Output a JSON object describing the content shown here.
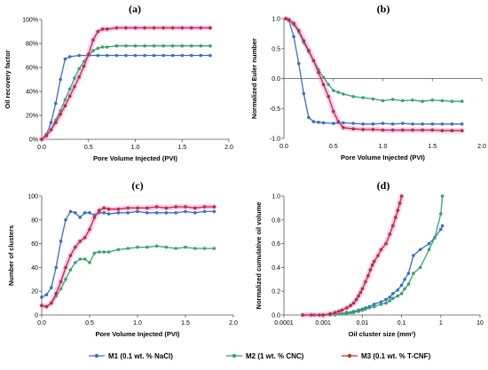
{
  "colors": {
    "M1": "#3a6ccc",
    "M2": "#33a56c",
    "M3": "#b8322a",
    "M3_glow": "#f060ff"
  },
  "legend": [
    {
      "key": "M1",
      "label": "M1 (0.1  wt. % NaCl)"
    },
    {
      "key": "M2",
      "label": "M2 (1  wt. % CNC)"
    },
    {
      "key": "M3",
      "label": "M3 (0.1 wt. % T-CNF)"
    }
  ],
  "chart_data": [
    {
      "type": "line",
      "title": "(a)",
      "xlabel": "Pore Volume Injected (PVI)",
      "ylabel": "Oil recovery factor",
      "xlim": [
        0,
        2
      ],
      "ylim": [
        0,
        100
      ],
      "xticks": [
        0,
        0.5,
        1,
        1.5,
        2
      ],
      "xtick_labels": [
        "0.0",
        "0.5",
        "1.0",
        "1.5",
        "2.0"
      ],
      "yticks": [
        0,
        20,
        40,
        60,
        80,
        100
      ],
      "ytick_labels": [
        "0%",
        "20%",
        "40%",
        "60%",
        "80%",
        "100%"
      ],
      "grid": false,
      "series": [
        {
          "key": "M1",
          "x": [
            0,
            0.05,
            0.1,
            0.15,
            0.2,
            0.25,
            0.3,
            0.4,
            0.5,
            0.6,
            0.7,
            0.8,
            0.9,
            1.0,
            1.1,
            1.2,
            1.3,
            1.4,
            1.5,
            1.6,
            1.7,
            1.8
          ],
          "y": [
            0,
            4,
            14,
            30,
            50,
            67,
            69,
            70,
            70,
            70,
            70,
            70,
            70,
            70,
            70,
            70,
            70,
            70,
            70,
            70,
            70,
            70
          ]
        },
        {
          "key": "M2",
          "x": [
            0,
            0.05,
            0.1,
            0.15,
            0.2,
            0.25,
            0.3,
            0.35,
            0.4,
            0.45,
            0.5,
            0.55,
            0.6,
            0.65,
            0.7,
            0.8,
            0.9,
            1.0,
            1.1,
            1.2,
            1.3,
            1.4,
            1.5,
            1.6,
            1.7,
            1.8
          ],
          "y": [
            0,
            3,
            8,
            16,
            24,
            33,
            42,
            51,
            59,
            65,
            70,
            74,
            76,
            77,
            77,
            78,
            78,
            78,
            78,
            78,
            78,
            78,
            78,
            78,
            78,
            78
          ]
        },
        {
          "key": "M3",
          "x": [
            0,
            0.05,
            0.1,
            0.15,
            0.2,
            0.25,
            0.3,
            0.35,
            0.4,
            0.45,
            0.5,
            0.55,
            0.6,
            0.65,
            0.7,
            0.8,
            0.9,
            1.0,
            1.1,
            1.2,
            1.3,
            1.4,
            1.5,
            1.6,
            1.7,
            1.8
          ],
          "y": [
            0,
            3,
            8,
            14,
            21,
            28,
            36,
            44,
            52,
            61,
            71,
            83,
            90,
            92,
            92,
            93,
            93,
            93,
            93,
            93,
            93,
            93,
            93,
            93,
            93,
            93
          ]
        }
      ]
    },
    {
      "type": "line",
      "title": "(b)",
      "xlabel": "Pore Volume Injected (PVI)",
      "ylabel": "Normalized Euler number",
      "xlim": [
        0,
        2
      ],
      "ylim": [
        -1,
        1
      ],
      "xticks": [
        0,
        0.5,
        1,
        1.5,
        2
      ],
      "xtick_labels": [
        "0.0",
        "0.5",
        "1.0",
        "1.5",
        "2.0"
      ],
      "yticks": [
        -1,
        -0.5,
        0,
        0.5,
        1
      ],
      "ytick_labels": [
        "-1.0",
        "-0.5",
        "0.0",
        "0.5",
        "1.0"
      ],
      "grid": false,
      "series": [
        {
          "key": "M1",
          "x": [
            0.02,
            0.05,
            0.1,
            0.15,
            0.2,
            0.25,
            0.3,
            0.35,
            0.4,
            0.5,
            0.6,
            0.7,
            0.8,
            0.9,
            1.0,
            1.1,
            1.2,
            1.3,
            1.4,
            1.5,
            1.6,
            1.7,
            1.8
          ],
          "y": [
            1.0,
            0.97,
            0.7,
            0.25,
            -0.25,
            -0.65,
            -0.72,
            -0.73,
            -0.74,
            -0.75,
            -0.74,
            -0.75,
            -0.76,
            -0.76,
            -0.75,
            -0.76,
            -0.75,
            -0.76,
            -0.76,
            -0.76,
            -0.76,
            -0.76,
            -0.76
          ]
        },
        {
          "key": "M2",
          "x": [
            0.02,
            0.05,
            0.1,
            0.15,
            0.2,
            0.25,
            0.3,
            0.35,
            0.4,
            0.45,
            0.5,
            0.55,
            0.6,
            0.7,
            0.8,
            0.9,
            1.0,
            1.1,
            1.2,
            1.3,
            1.4,
            1.5,
            1.6,
            1.7,
            1.8
          ],
          "y": [
            1.0,
            0.98,
            0.9,
            0.78,
            0.6,
            0.45,
            0.3,
            0.15,
            0.02,
            -0.1,
            -0.2,
            -0.23,
            -0.26,
            -0.3,
            -0.32,
            -0.34,
            -0.37,
            -0.35,
            -0.37,
            -0.36,
            -0.38,
            -0.36,
            -0.37,
            -0.38,
            -0.38
          ]
        },
        {
          "key": "M3",
          "x": [
            0.02,
            0.05,
            0.1,
            0.15,
            0.2,
            0.25,
            0.3,
            0.35,
            0.4,
            0.45,
            0.5,
            0.55,
            0.6,
            0.7,
            0.8,
            0.9,
            1.0,
            1.1,
            1.2,
            1.3,
            1.4,
            1.5,
            1.6,
            1.7,
            1.8
          ],
          "y": [
            1.0,
            0.98,
            0.92,
            0.8,
            0.63,
            0.47,
            0.3,
            0.1,
            -0.1,
            -0.3,
            -0.55,
            -0.72,
            -0.82,
            -0.84,
            -0.85,
            -0.85,
            -0.86,
            -0.86,
            -0.86,
            -0.86,
            -0.86,
            -0.86,
            -0.87,
            -0.87,
            -0.87
          ]
        }
      ]
    },
    {
      "type": "line",
      "title": "(c)",
      "xlabel": "Pore Volume Injected (PVI)",
      "ylabel": "Number of clusters",
      "xlim": [
        0,
        2
      ],
      "ylim": [
        0,
        100
      ],
      "xticks": [
        0,
        0.5,
        1,
        1.5,
        2
      ],
      "xtick_labels": [
        "0.0",
        "0.5",
        "1.0",
        "1.5",
        "2.0"
      ],
      "yticks": [
        0,
        20,
        40,
        60,
        80,
        100
      ],
      "ytick_labels": [
        "0",
        "20",
        "40",
        "60",
        "80",
        "100"
      ],
      "grid": false,
      "series": [
        {
          "key": "M1",
          "x": [
            0,
            0.05,
            0.1,
            0.15,
            0.2,
            0.25,
            0.3,
            0.35,
            0.4,
            0.45,
            0.5,
            0.55,
            0.6,
            0.65,
            0.7,
            0.8,
            0.9,
            1.0,
            1.1,
            1.2,
            1.3,
            1.4,
            1.5,
            1.6,
            1.7,
            1.8
          ],
          "y": [
            15,
            17,
            23,
            40,
            62,
            80,
            87,
            86,
            82,
            86,
            86,
            84,
            86,
            86,
            85,
            86,
            86,
            87,
            86,
            86,
            86,
            86,
            87,
            86,
            87,
            87
          ]
        },
        {
          "key": "M2",
          "x": [
            0,
            0.05,
            0.1,
            0.15,
            0.2,
            0.25,
            0.3,
            0.35,
            0.4,
            0.45,
            0.5,
            0.55,
            0.6,
            0.65,
            0.7,
            0.8,
            0.9,
            1.0,
            1.1,
            1.2,
            1.3,
            1.4,
            1.5,
            1.6,
            1.7,
            1.8
          ],
          "y": [
            8,
            7,
            10,
            16,
            22,
            30,
            38,
            44,
            47,
            47,
            44,
            52,
            53,
            53,
            53,
            55,
            56,
            57,
            57,
            58,
            57,
            56,
            57,
            56,
            56,
            56
          ]
        },
        {
          "key": "M3",
          "x": [
            0,
            0.05,
            0.1,
            0.15,
            0.2,
            0.25,
            0.3,
            0.35,
            0.4,
            0.45,
            0.5,
            0.55,
            0.6,
            0.65,
            0.7,
            0.8,
            0.9,
            1.0,
            1.1,
            1.2,
            1.3,
            1.4,
            1.5,
            1.6,
            1.7,
            1.8
          ],
          "y": [
            8,
            7,
            10,
            18,
            28,
            40,
            50,
            57,
            62,
            65,
            72,
            82,
            88,
            90,
            89,
            89,
            90,
            90,
            90,
            91,
            90,
            91,
            91,
            90,
            91,
            91
          ]
        }
      ]
    },
    {
      "type": "line",
      "title": "(d)",
      "xlabel": "Oil cluster size (mm²)",
      "ylabel": "Normalized cumulative oil volume",
      "xscale": "log",
      "xlim": [
        0.0001,
        10
      ],
      "ylim": [
        0,
        1
      ],
      "xticks": [
        0.0001,
        0.001,
        0.01,
        0.1,
        1,
        10
      ],
      "xtick_labels": [
        "0.0001",
        "0.001",
        "0.01",
        "0.1",
        "1",
        "10"
      ],
      "yticks": [
        0,
        0.2,
        0.4,
        0.6,
        0.8,
        1
      ],
      "ytick_labels": [
        "0.0",
        "0.2",
        "0.4",
        "0.6",
        "0.8",
        "1.0"
      ],
      "grid": false,
      "series": [
        {
          "key": "M1",
          "x": [
            0.0003,
            0.0006,
            0.001,
            0.0015,
            0.002,
            0.003,
            0.004,
            0.005,
            0.006,
            0.008,
            0.01,
            0.012,
            0.015,
            0.02,
            0.03,
            0.04,
            0.05,
            0.06,
            0.08,
            0.1,
            0.12,
            0.15,
            0.2,
            0.3,
            0.5,
            0.7,
            1.0,
            1.1
          ],
          "y": [
            0,
            0,
            0,
            0,
            0.01,
            0.01,
            0.02,
            0.02,
            0.03,
            0.04,
            0.05,
            0.06,
            0.07,
            0.09,
            0.11,
            0.13,
            0.15,
            0.18,
            0.21,
            0.25,
            0.3,
            0.35,
            0.5,
            0.55,
            0.6,
            0.65,
            0.72,
            0.75
          ]
        },
        {
          "key": "M2",
          "x": [
            0.0003,
            0.0006,
            0.001,
            0.0015,
            0.002,
            0.003,
            0.004,
            0.005,
            0.006,
            0.008,
            0.01,
            0.012,
            0.015,
            0.02,
            0.03,
            0.04,
            0.05,
            0.06,
            0.08,
            0.1,
            0.12,
            0.15,
            0.2,
            0.3,
            0.5,
            0.7,
            1.0,
            1.1
          ],
          "y": [
            0,
            0,
            0,
            0,
            0,
            0.01,
            0.01,
            0.02,
            0.02,
            0.03,
            0.04,
            0.05,
            0.06,
            0.07,
            0.09,
            0.1,
            0.12,
            0.14,
            0.16,
            0.18,
            0.22,
            0.26,
            0.35,
            0.4,
            0.55,
            0.65,
            0.85,
            1.0
          ]
        },
        {
          "key": "M3",
          "x": [
            0.0003,
            0.0005,
            0.0008,
            0.001,
            0.0015,
            0.002,
            0.0025,
            0.003,
            0.004,
            0.005,
            0.006,
            0.007,
            0.008,
            0.009,
            0.01,
            0.012,
            0.014,
            0.016,
            0.018,
            0.02,
            0.025,
            0.03,
            0.04,
            0.05,
            0.06,
            0.07,
            0.08,
            0.09,
            0.1
          ],
          "y": [
            0,
            0,
            0,
            0,
            0.01,
            0.02,
            0.03,
            0.04,
            0.06,
            0.08,
            0.1,
            0.13,
            0.16,
            0.19,
            0.22,
            0.28,
            0.33,
            0.38,
            0.42,
            0.45,
            0.5,
            0.55,
            0.6,
            0.68,
            0.75,
            0.82,
            0.88,
            0.94,
            1.0
          ]
        }
      ]
    }
  ]
}
